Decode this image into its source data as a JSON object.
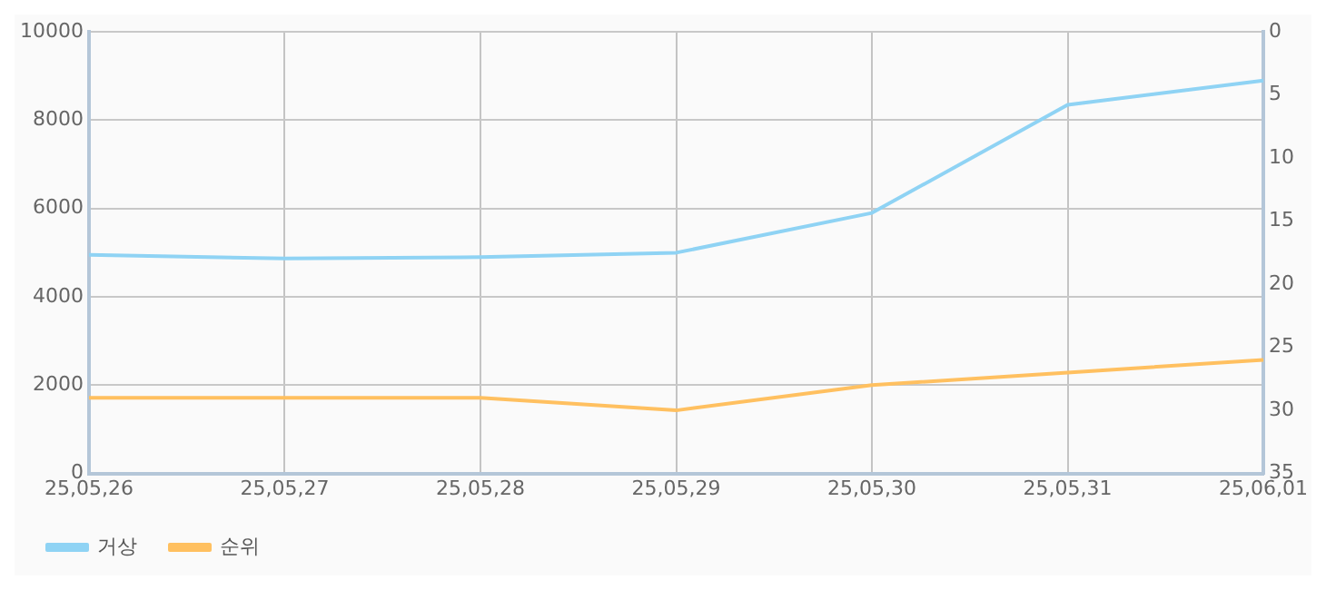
{
  "chart_data": {
    "type": "line",
    "categories": [
      "25,05,26",
      "25,05,27",
      "25,05,28",
      "25,05,29",
      "25,05,30",
      "25,05,31",
      "25,06,01"
    ],
    "series": [
      {
        "name": "거상",
        "color": "#8fd3f4",
        "values": [
          4950,
          4870,
          4900,
          5000,
          5900,
          8350,
          8900
        ]
      },
      {
        "name": "순위",
        "color": "#ffc060",
        "axis": "y2",
        "values": [
          29,
          29,
          29,
          30,
          28,
          27,
          26
        ]
      }
    ],
    "ylim": [
      0,
      10000
    ],
    "yticks": [
      0,
      2000,
      4000,
      6000,
      8000,
      10000
    ],
    "y2lim": [
      35,
      0
    ],
    "y2ticks": [
      0,
      5,
      10,
      15,
      20,
      25,
      30,
      35
    ],
    "grid": true,
    "legend": "bottom left",
    "marker": "none",
    "line_style": "solid"
  }
}
